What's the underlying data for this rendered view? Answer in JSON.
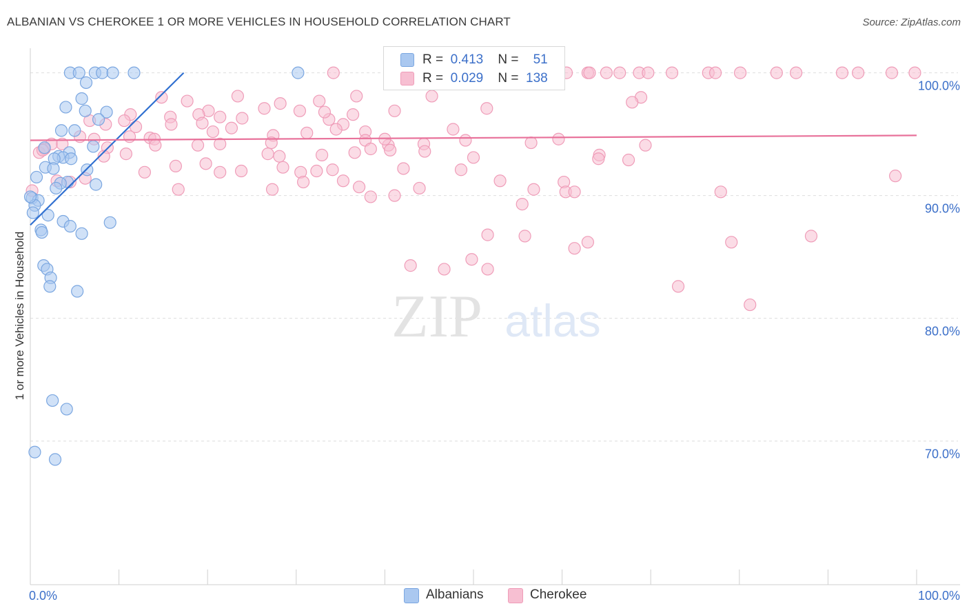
{
  "title": "ALBANIAN VS CHEROKEE 1 OR MORE VEHICLES IN HOUSEHOLD CORRELATION CHART",
  "source": "Source: ZipAtlas.com",
  "watermark": {
    "zip": "ZIP",
    "atlas": "atlas"
  },
  "legend_top": {
    "rows": [
      {
        "r_label": "R =",
        "r_value": "0.413",
        "n_label": "N =",
        "n_value": "51"
      },
      {
        "r_label": "R =",
        "r_value": "0.029",
        "n_label": "N =",
        "n_value": "138"
      }
    ]
  },
  "legend_bottom": [
    "Albanians",
    "Cherokee"
  ],
  "colors": {
    "albanian_fill": "#aac8f0",
    "albanian_stroke": "#7aa6e0",
    "albanian_line": "#2f6fd0",
    "cherokee_fill": "#f7bfd2",
    "cherokee_stroke": "#ef9cb8",
    "cherokee_line": "#e8719a",
    "axis_label": "#3b6fc9",
    "grid": "#dddddd"
  },
  "chart_data": {
    "type": "scatter",
    "title": "ALBANIAN VS CHEROKEE 1 OR MORE VEHICLES IN HOUSEHOLD CORRELATION CHART",
    "xlabel": "",
    "ylabel": "1 or more Vehicles in Household",
    "xlim": [
      0,
      100
    ],
    "ylim": [
      58.3,
      102
    ],
    "x_tick_labels": [
      "0.0%",
      "100.0%"
    ],
    "y_ticks": [
      100,
      90,
      80,
      70
    ],
    "y_tick_labels": [
      "100.0%",
      "90.0%",
      "80.0%",
      "70.0%"
    ],
    "grid": true,
    "legend_placement": "bottom",
    "series": [
      {
        "name": "Albanians",
        "r": 0.413,
        "n": 51,
        "trend": [
          [
            0,
            87.6
          ],
          [
            17.3,
            100
          ]
        ],
        "points": [
          [
            4.5,
            100
          ],
          [
            5.5,
            100
          ],
          [
            7.3,
            100
          ],
          [
            8.1,
            100
          ],
          [
            9.3,
            100
          ],
          [
            11.7,
            100
          ],
          [
            30.2,
            100
          ],
          [
            6.3,
            99.2
          ],
          [
            5.8,
            97.9
          ],
          [
            4,
            97.2
          ],
          [
            6.2,
            96.9
          ],
          [
            8.6,
            96.8
          ],
          [
            7.7,
            96.2
          ],
          [
            3.5,
            95.3
          ],
          [
            5,
            95.3
          ],
          [
            7.1,
            94
          ],
          [
            1.6,
            93.9
          ],
          [
            4.4,
            93.5
          ],
          [
            3.2,
            93.2
          ],
          [
            3.7,
            93.1
          ],
          [
            2.7,
            93
          ],
          [
            4.6,
            93
          ],
          [
            1.7,
            92.3
          ],
          [
            2.6,
            92.2
          ],
          [
            6.4,
            92.1
          ],
          [
            0.7,
            91.5
          ],
          [
            4.2,
            91.1
          ],
          [
            3.4,
            91
          ],
          [
            7.4,
            90.9
          ],
          [
            2.9,
            90.6
          ],
          [
            0.2,
            89.8
          ],
          [
            0.9,
            89.6
          ],
          [
            0.5,
            89.2
          ],
          [
            0.3,
            88.6
          ],
          [
            2,
            88.4
          ],
          [
            3.7,
            87.9
          ],
          [
            9,
            87.8
          ],
          [
            4.5,
            87.5
          ],
          [
            1.2,
            87.2
          ],
          [
            1.3,
            87
          ],
          [
            5.8,
            86.9
          ],
          [
            1.5,
            84.3
          ],
          [
            1.9,
            84
          ],
          [
            2.3,
            83.3
          ],
          [
            2.2,
            82.6
          ],
          [
            5.3,
            82.2
          ],
          [
            2.5,
            73.3
          ],
          [
            4.1,
            72.6
          ],
          [
            0.5,
            69.1
          ],
          [
            2.8,
            68.5
          ],
          [
            0,
            89.9
          ]
        ]
      },
      {
        "name": "Cherokee",
        "r": 0.029,
        "n": 138,
        "trend": [
          [
            0,
            94.5
          ],
          [
            100,
            94.9
          ]
        ],
        "points": [
          [
            34.2,
            100
          ],
          [
            44.8,
            100
          ],
          [
            48.1,
            100
          ],
          [
            55.1,
            100
          ],
          [
            60.5,
            100
          ],
          [
            62.9,
            100
          ],
          [
            63.1,
            100
          ],
          [
            65,
            100
          ],
          [
            66.5,
            100
          ],
          [
            68.7,
            100
          ],
          [
            69.7,
            100
          ],
          [
            72.4,
            100
          ],
          [
            76.5,
            100
          ],
          [
            77.3,
            100
          ],
          [
            80.1,
            100
          ],
          [
            84.2,
            100
          ],
          [
            86.4,
            100
          ],
          [
            91.6,
            100
          ],
          [
            93.4,
            100
          ],
          [
            97.2,
            100
          ],
          [
            99.8,
            100
          ],
          [
            14.8,
            98
          ],
          [
            23.4,
            98.1
          ],
          [
            36.8,
            98.1
          ],
          [
            45.3,
            98.1
          ],
          [
            68.9,
            98
          ],
          [
            17.7,
            97.7
          ],
          [
            32.6,
            97.7
          ],
          [
            28.2,
            97.5
          ],
          [
            67.9,
            97.6
          ],
          [
            26.4,
            97.1
          ],
          [
            51.5,
            97.1
          ],
          [
            20.1,
            96.9
          ],
          [
            30.4,
            96.9
          ],
          [
            41.1,
            96.9
          ],
          [
            11.3,
            96.6
          ],
          [
            19,
            96.6
          ],
          [
            36.4,
            96.6
          ],
          [
            15.8,
            96.4
          ],
          [
            21.4,
            96.4
          ],
          [
            23.9,
            96.3
          ],
          [
            33.7,
            96.2
          ],
          [
            6.7,
            96.1
          ],
          [
            10.6,
            96.1
          ],
          [
            19.4,
            95.9
          ],
          [
            33.2,
            96.8
          ],
          [
            8.5,
            95.8
          ],
          [
            15.9,
            95.8
          ],
          [
            35.3,
            95.8
          ],
          [
            11.9,
            95.6
          ],
          [
            22.7,
            95.5
          ],
          [
            34.5,
            95.4
          ],
          [
            47.7,
            95.4
          ],
          [
            37.8,
            95.2
          ],
          [
            20.6,
            95.2
          ],
          [
            31.2,
            95.1
          ],
          [
            27.4,
            94.9
          ],
          [
            11.2,
            94.8
          ],
          [
            13.5,
            94.7
          ],
          [
            49.1,
            94.5
          ],
          [
            14,
            94.6
          ],
          [
            5.6,
            94.8
          ],
          [
            7.2,
            94.6
          ],
          [
            2.4,
            94.2
          ],
          [
            3.6,
            94.2
          ],
          [
            1,
            93.5
          ],
          [
            1.6,
            93.8
          ],
          [
            21.4,
            94.2
          ],
          [
            27.2,
            94.3
          ],
          [
            40.4,
            94.1
          ],
          [
            44.4,
            94.2
          ],
          [
            56.5,
            94.3
          ],
          [
            59.6,
            94.6
          ],
          [
            69.4,
            94.1
          ],
          [
            40,
            94.6
          ],
          [
            37.8,
            94.5
          ],
          [
            38.4,
            93.8
          ],
          [
            14.1,
            94.1
          ],
          [
            18.9,
            94.1
          ],
          [
            10.8,
            93.4
          ],
          [
            26.8,
            93.4
          ],
          [
            28.1,
            93.2
          ],
          [
            32.9,
            93.3
          ],
          [
            36.6,
            93.5
          ],
          [
            44.5,
            93.6
          ],
          [
            50,
            93.1
          ],
          [
            64.2,
            93.3
          ],
          [
            8.7,
            93.9
          ],
          [
            40.6,
            93.7
          ],
          [
            1.4,
            93.7
          ],
          [
            8.3,
            93.2
          ],
          [
            16.4,
            92.4
          ],
          [
            19.8,
            92.6
          ],
          [
            28.5,
            92.3
          ],
          [
            32.3,
            92
          ],
          [
            34.1,
            92.1
          ],
          [
            42.1,
            92.2
          ],
          [
            48.6,
            92.1
          ],
          [
            64.1,
            93
          ],
          [
            67.5,
            92.9
          ],
          [
            12.9,
            91.9
          ],
          [
            21.4,
            91.9
          ],
          [
            23.8,
            92
          ],
          [
            30.5,
            91.9
          ],
          [
            30.8,
            91.1
          ],
          [
            35.3,
            91.2
          ],
          [
            53,
            91.2
          ],
          [
            60.2,
            91.1
          ],
          [
            6.2,
            91.4
          ],
          [
            3,
            91.2
          ],
          [
            16.7,
            90.5
          ],
          [
            27.3,
            90.5
          ],
          [
            37.1,
            90.7
          ],
          [
            43.9,
            90.6
          ],
          [
            56.8,
            90.5
          ],
          [
            60.4,
            90.3
          ],
          [
            61.4,
            90.3
          ],
          [
            38.4,
            89.9
          ],
          [
            41.1,
            90
          ],
          [
            77.9,
            90.3
          ],
          [
            97.6,
            91.6
          ],
          [
            0.2,
            90.4
          ],
          [
            4.5,
            91.1
          ],
          [
            55.5,
            89.3
          ],
          [
            51.6,
            86.8
          ],
          [
            55.8,
            86.7
          ],
          [
            61.4,
            85.7
          ],
          [
            62.9,
            86.2
          ],
          [
            79.1,
            86.2
          ],
          [
            88.1,
            86.7
          ],
          [
            49.8,
            84.8
          ],
          [
            42.9,
            84.3
          ],
          [
            46.7,
            84
          ],
          [
            51.6,
            84
          ],
          [
            73.1,
            82.6
          ],
          [
            81.2,
            81.1
          ]
        ]
      }
    ]
  }
}
